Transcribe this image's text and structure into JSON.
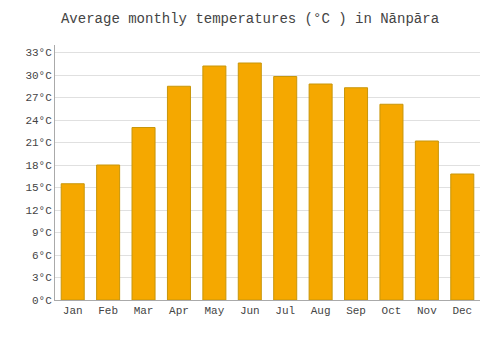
{
  "chart_data": {
    "type": "bar",
    "title": "Average monthly temperatures (°C ) in Nānpāra",
    "categories": [
      "Jan",
      "Feb",
      "Mar",
      "Apr",
      "May",
      "Jun",
      "Jul",
      "Aug",
      "Sep",
      "Oct",
      "Nov",
      "Dec"
    ],
    "values": [
      15.5,
      18.0,
      23.0,
      28.5,
      31.2,
      31.6,
      29.8,
      28.8,
      28.3,
      26.1,
      21.2,
      16.8
    ],
    "color": "#F5A800",
    "ylim": [
      0,
      34
    ],
    "yticks": [
      {
        "value": 0,
        "label": "0°C"
      },
      {
        "value": 3,
        "label": "3°C"
      },
      {
        "value": 6,
        "label": "6°C"
      },
      {
        "value": 9,
        "label": "9°C"
      },
      {
        "value": 12,
        "label": "12°C"
      },
      {
        "value": 15,
        "label": "15°C"
      },
      {
        "value": 18,
        "label": "18°C"
      },
      {
        "value": 21,
        "label": "21°C"
      },
      {
        "value": 24,
        "label": "24°C"
      },
      {
        "value": 27,
        "label": "27°C"
      },
      {
        "value": 30,
        "label": "30°C"
      },
      {
        "value": 33,
        "label": "33°C"
      }
    ],
    "grid": true
  }
}
